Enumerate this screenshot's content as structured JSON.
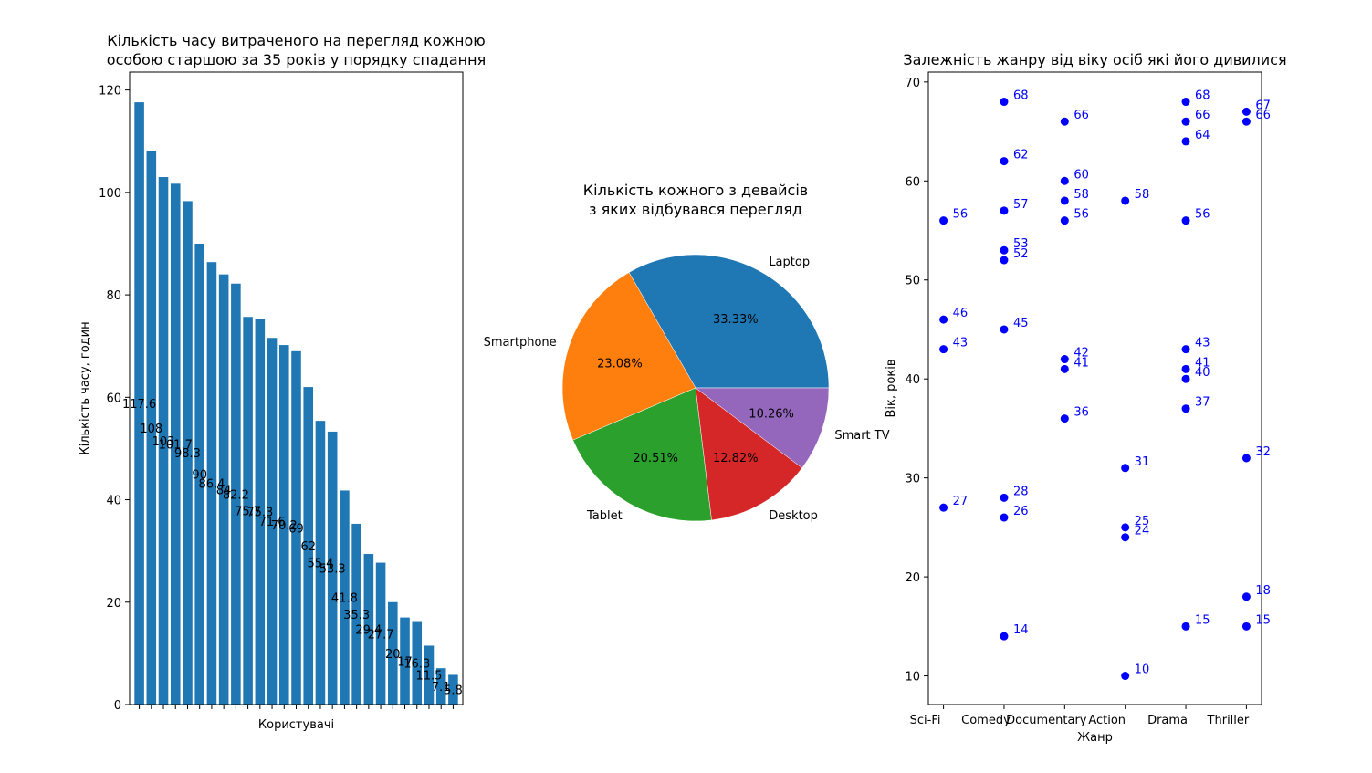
{
  "colors": {
    "bar": "#1f77b4",
    "scatter": "#0000ff",
    "pie": [
      "#1f77b4",
      "#ff7f0e",
      "#2ca02c",
      "#d62728",
      "#9467bd"
    ]
  },
  "chart_data": [
    {
      "type": "bar",
      "title": "Кількість часу витраченого на перегляд кожною\nособою старшою за 35 років у порядку спадання",
      "xlabel": "Користувачі",
      "ylabel": "Кількість часу, годин",
      "ylim": [
        0,
        123.5
      ],
      "yticks": [
        0,
        20,
        40,
        60,
        80,
        100,
        120
      ],
      "values": [
        117.6,
        108,
        103,
        101.7,
        98.3,
        90,
        86.4,
        84,
        82.2,
        75.7,
        75.3,
        71.6,
        70.2,
        69,
        62,
        55.4,
        53.3,
        41.8,
        35.3,
        29.4,
        27.7,
        20,
        17,
        16.3,
        11.5,
        7.1,
        5.8
      ],
      "labels": [
        "117.6",
        "108",
        "103",
        "101.7",
        "98.3",
        "90",
        "86.4",
        "84",
        "82.2",
        "75.7",
        "75.3",
        "71.6",
        "70.2",
        "69",
        "62",
        "55.4",
        "53.3",
        "41.8",
        "35.3",
        "29.4",
        "27.7",
        "20",
        "17",
        "16.3",
        "11.5",
        "7.1",
        "5.8"
      ]
    },
    {
      "type": "pie",
      "title": "Кількість кожного з девайсів\nз яких відбувався перегляд",
      "labels": [
        "Laptop",
        "Smartphone",
        "Tablet",
        "Desktop",
        "Smart TV"
      ],
      "values": [
        33.33,
        23.08,
        20.51,
        12.82,
        10.26
      ],
      "pct_labels": [
        "33.33%",
        "23.08%",
        "20.51%",
        "12.82%",
        "10.26%"
      ]
    },
    {
      "type": "scatter",
      "title": "Залежність жанру від віку осіб які його дивилися",
      "xlabel": "Жанр",
      "ylabel": "Вік, років",
      "categories": [
        "Sci-Fi",
        "Comedy",
        "Documentary",
        "Action",
        "Drama",
        "Thriller"
      ],
      "ylim": [
        7.1,
        71
      ],
      "yticks": [
        10,
        20,
        30,
        40,
        50,
        60,
        70
      ],
      "points": [
        {
          "cat": 0,
          "y": 56,
          "label": "56"
        },
        {
          "cat": 0,
          "y": 46,
          "label": "46"
        },
        {
          "cat": 0,
          "y": 43,
          "label": "43"
        },
        {
          "cat": 0,
          "y": 27,
          "label": "27"
        },
        {
          "cat": 1,
          "y": 68,
          "label": "68"
        },
        {
          "cat": 1,
          "y": 62,
          "label": "62"
        },
        {
          "cat": 1,
          "y": 57,
          "label": "57"
        },
        {
          "cat": 1,
          "y": 53,
          "label": "53"
        },
        {
          "cat": 1,
          "y": 52,
          "label": "52"
        },
        {
          "cat": 1,
          "y": 45,
          "label": "45"
        },
        {
          "cat": 1,
          "y": 28,
          "label": "28"
        },
        {
          "cat": 1,
          "y": 26,
          "label": "26"
        },
        {
          "cat": 1,
          "y": 14,
          "label": "14"
        },
        {
          "cat": 2,
          "y": 66,
          "label": "66"
        },
        {
          "cat": 2,
          "y": 60,
          "label": "60"
        },
        {
          "cat": 2,
          "y": 58,
          "label": "58"
        },
        {
          "cat": 2,
          "y": 56,
          "label": "56"
        },
        {
          "cat": 2,
          "y": 42,
          "label": "42"
        },
        {
          "cat": 2,
          "y": 41,
          "label": "41"
        },
        {
          "cat": 2,
          "y": 36,
          "label": "36"
        },
        {
          "cat": 3,
          "y": 58,
          "label": "58"
        },
        {
          "cat": 3,
          "y": 31,
          "label": "31"
        },
        {
          "cat": 3,
          "y": 25,
          "label": "25"
        },
        {
          "cat": 3,
          "y": 24,
          "label": "24"
        },
        {
          "cat": 3,
          "y": 10,
          "label": "10"
        },
        {
          "cat": 4,
          "y": 68,
          "label": "68"
        },
        {
          "cat": 4,
          "y": 66,
          "label": "66"
        },
        {
          "cat": 4,
          "y": 64,
          "label": "64"
        },
        {
          "cat": 4,
          "y": 56,
          "label": "56"
        },
        {
          "cat": 4,
          "y": 43,
          "label": "43"
        },
        {
          "cat": 4,
          "y": 41,
          "label": "41"
        },
        {
          "cat": 4,
          "y": 40,
          "label": "40"
        },
        {
          "cat": 4,
          "y": 37,
          "label": "37"
        },
        {
          "cat": 4,
          "y": 15,
          "label": "15"
        },
        {
          "cat": 5,
          "y": 67,
          "label": "67"
        },
        {
          "cat": 5,
          "y": 66,
          "label": "66"
        },
        {
          "cat": 5,
          "y": 32,
          "label": "32"
        },
        {
          "cat": 5,
          "y": 18,
          "label": "18"
        },
        {
          "cat": 5,
          "y": 15,
          "label": "15"
        }
      ]
    }
  ]
}
